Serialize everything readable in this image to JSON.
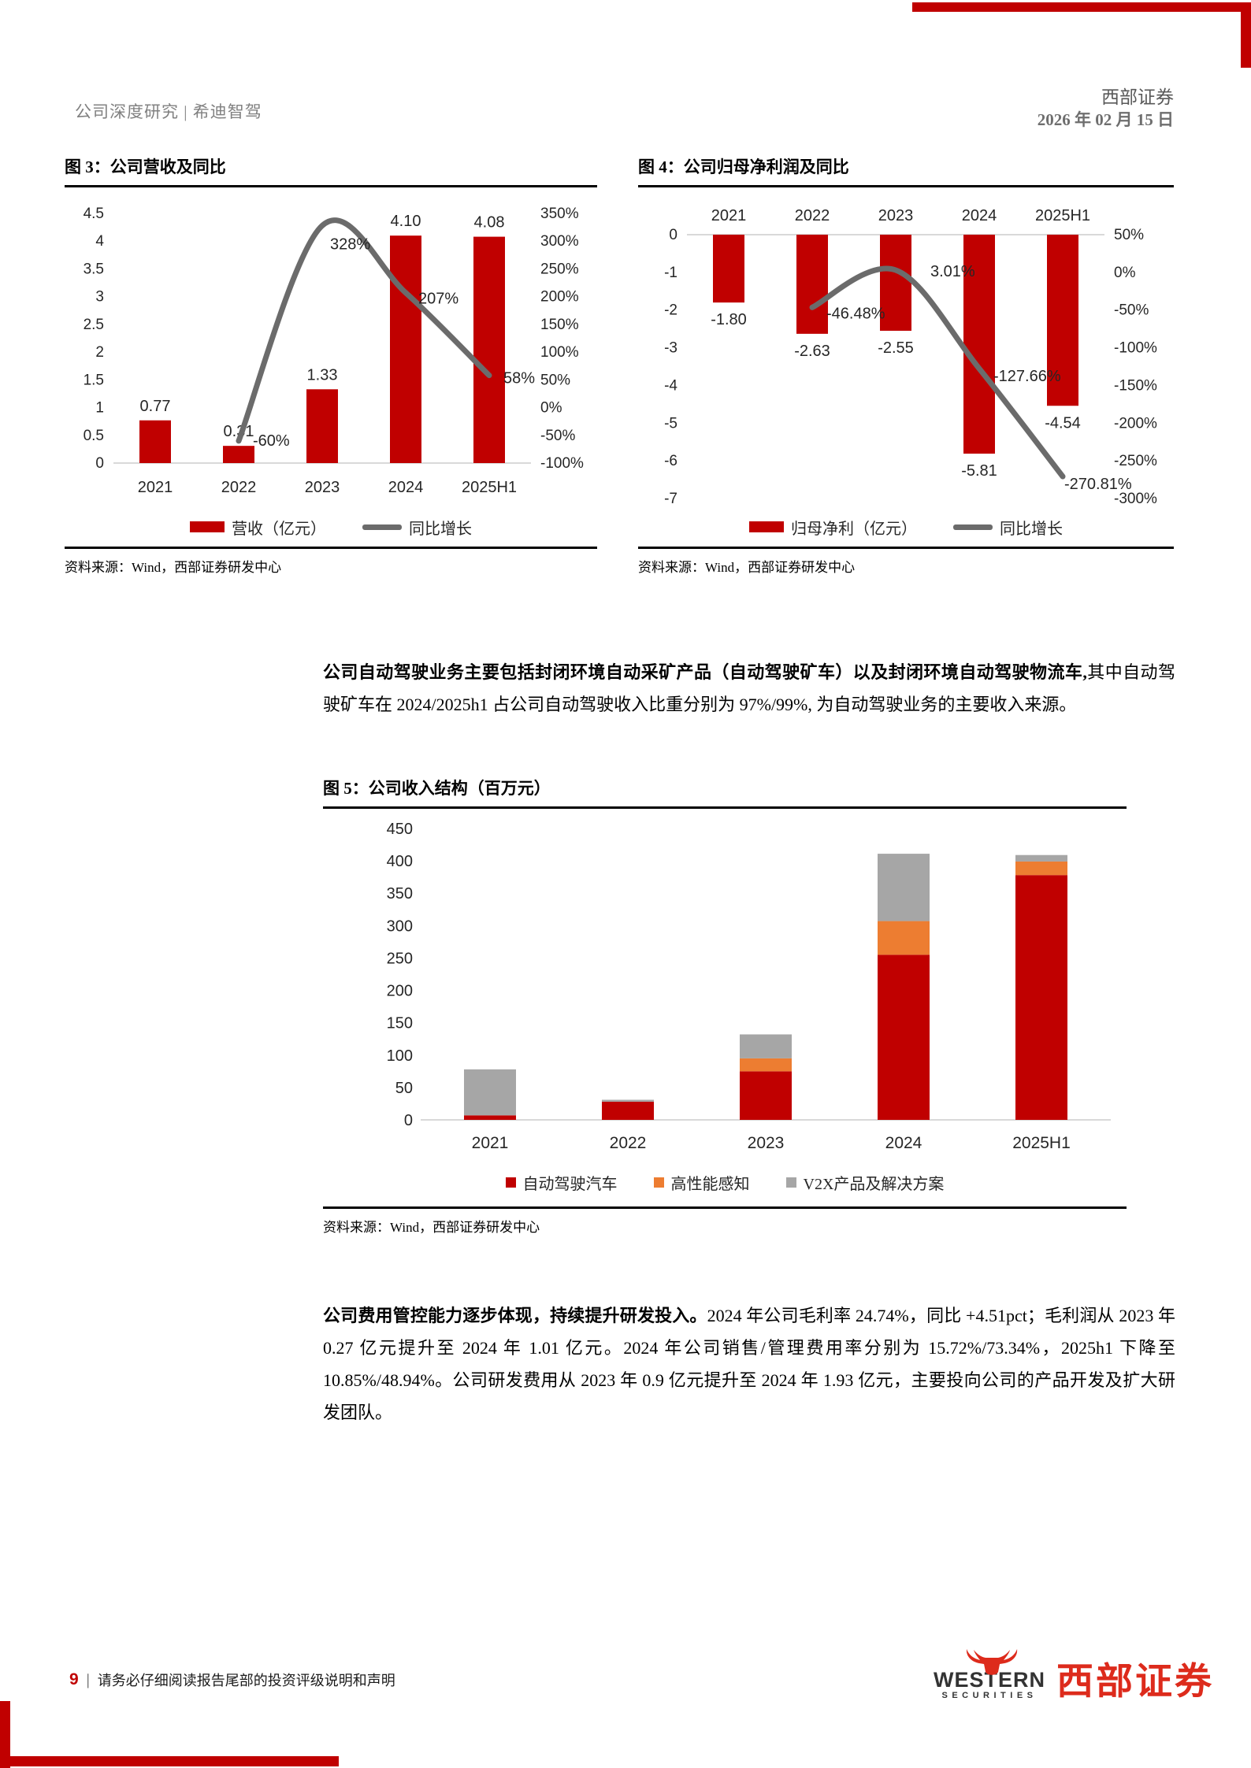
{
  "page_header": {
    "left_title": "公司深度研究 | 希迪智驾",
    "brand": "西部证券",
    "date": "2026 年 02 月 15 日"
  },
  "paragraphs": [
    {
      "bold": "公司自动驾驶业务主要包括封闭环境自动采矿产品（自动驾驶矿车）以及封闭环境自动驾驶物流车,",
      "rest": "其中自动驾驶矿车在 2024/2025h1 占公司自动驾驶收入比重分别为 97%/99%, 为自动驾驶业务的主要收入来源。"
    },
    {
      "bold": "公司费用管控能力逐步体现，持续提升研发投入。",
      "rest": "2024 年公司毛利率 24.74%，同比 +4.51pct；毛利润从 2023 年 0.27 亿元提升至 2024 年 1.01 亿元。2024 年公司销售/管理费用率分别为 15.72%/73.34%，2025h1 下降至 10.85%/48.94%。公司研发费用从 2023 年 0.9 亿元提升至 2024 年 1.93 亿元，主要投向公司的产品开发及扩大研发团队。"
    }
  ],
  "chart_data": [
    {
      "id": "fig3",
      "type": "bar+line",
      "title": "图 3：公司营收及同比",
      "categories": [
        "2021",
        "2022",
        "2023",
        "2024",
        "2025H1"
      ],
      "bar_series": {
        "name": "营收（亿元）",
        "values": [
          0.77,
          0.31,
          1.33,
          4.1,
          4.08
        ],
        "labels": [
          "0.77",
          "0.31",
          "1.33",
          "4.10",
          "4.08"
        ],
        "color": "#C00000"
      },
      "line_series": {
        "name": "同比增长",
        "values_pct": [
          null,
          -60,
          328,
          207,
          58
        ],
        "labels": [
          "-60%",
          "328%",
          "207%",
          "58%"
        ],
        "color": "#6B6B6B"
      },
      "left_axis": {
        "min": 0,
        "max": 4.5,
        "step": 0.5
      },
      "right_axis": {
        "min": -100,
        "max": 350,
        "step": 50,
        "suffix": "%"
      },
      "legend_position": "bottom",
      "source": "资料来源：Wind，西部证券研发中心"
    },
    {
      "id": "fig4",
      "type": "bar+line",
      "title": "图 4：公司归母净利润及同比",
      "categories": [
        "2021",
        "2022",
        "2023",
        "2024",
        "2025H1"
      ],
      "bar_series": {
        "name": "归母净利（亿元）",
        "values": [
          -1.8,
          -2.63,
          -2.55,
          -5.81,
          -4.54
        ],
        "labels": [
          "-1.80",
          "-2.63",
          "-2.55",
          "-5.81",
          "-4.54"
        ],
        "color": "#C00000"
      },
      "line_series": {
        "name": "同比增长",
        "values_pct": [
          null,
          -46.48,
          3.01,
          -127.66,
          -270.81
        ],
        "labels": [
          "-46.48%",
          "3.01%",
          "-127.66%",
          "-270.81%"
        ],
        "color": "#6B6B6B"
      },
      "left_axis": {
        "min": -7,
        "max": 0,
        "step": 1
      },
      "right_axis": {
        "min": -300,
        "max": 50,
        "step": 50,
        "suffix": "%"
      },
      "legend_position": "bottom",
      "source": "资料来源：Wind，西部证券研发中心"
    },
    {
      "id": "fig5",
      "type": "stacked-bar",
      "title": "图 5：公司收入结构（百万元）",
      "categories": [
        "2021",
        "2022",
        "2023",
        "2024",
        "2025H1"
      ],
      "series": [
        {
          "name": "自动驾驶汽车",
          "color": "#C00000",
          "values": [
            7,
            28,
            75,
            255,
            378
          ]
        },
        {
          "name": "高性能感知",
          "color": "#ED7D31",
          "values": [
            0,
            0,
            20,
            52,
            21
          ]
        },
        {
          "name": "V2X产品及解决方案",
          "color": "#A6A6A6",
          "values": [
            71,
            3,
            37,
            104,
            10
          ]
        }
      ],
      "y_axis": {
        "min": 0,
        "max": 450,
        "step": 50
      },
      "legend_position": "bottom",
      "source": "资料来源：Wind，西部证券研发中心"
    }
  ],
  "footer": {
    "page_number": "9",
    "separator": "|",
    "disclaimer": "请务必仔细阅读报告尾部的投资评级说明和声明",
    "logo": {
      "name_en": "WESTERN",
      "sub_en": "SECURITIES",
      "name_cn": "西部证券"
    }
  },
  "colors": {
    "bar_red": "#C00000",
    "orange": "#ED7D31",
    "stack_gray": "#A6A6A6",
    "line_gray": "#6B6B6B",
    "axis_gray": "#D9D9D9",
    "decor_red": "#C00000",
    "logo_red": "#DD2B1C",
    "header_gray": "#808080",
    "brand_gray": "#595959"
  }
}
